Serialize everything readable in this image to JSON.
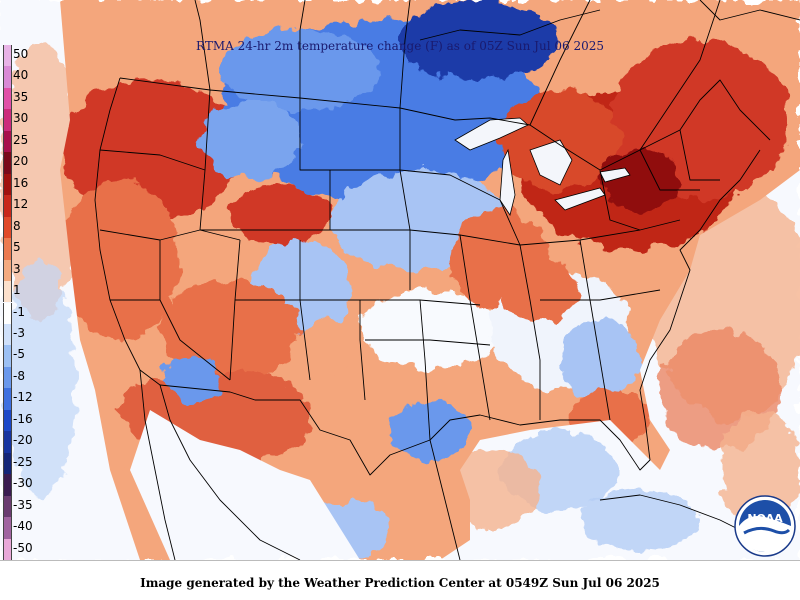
{
  "title": "RTMA 24-hr 2m temperature change (F) as of 05Z Sun Jul 06 2025",
  "footer": "Image generated by the Weather Prediction Center at 0549Z Sun Jul 06 2025",
  "logo_text": "NOAA",
  "legend": {
    "labels": [
      "50",
      "40",
      "35",
      "30",
      "25",
      "20",
      "16",
      "12",
      "8",
      "5",
      "3",
      "1",
      "-1",
      "-3",
      "-5",
      "-8",
      "-12",
      "-16",
      "-20",
      "-25",
      "-30",
      "-35",
      "-40",
      "-50"
    ],
    "colors": [
      "#e8b3e6",
      "#d98ad6",
      "#e050a8",
      "#cc2c7c",
      "#a8104c",
      "#7a0a1a",
      "#a0120e",
      "#c8281a",
      "#e04a2a",
      "#ec7a50",
      "#f4aa80",
      "#fce0cc",
      "#ffffff",
      "#cfe0fa",
      "#9cc0f4",
      "#6a98ec",
      "#3e70e0",
      "#1c48c8",
      "#1634a0",
      "#142678",
      "#3a1c50",
      "#6a3c70",
      "#a064a0",
      "#e8a8d8"
    ]
  },
  "colors": {
    "warm_strong": "#d03828",
    "warm": "#e8704a",
    "warm_light": "#f4a67c",
    "cool_light": "#a8c4f4",
    "cool": "#4a7ce4",
    "cool_strong": "#1c3aa8",
    "water": "#ffffff",
    "boundary": "#000000"
  }
}
